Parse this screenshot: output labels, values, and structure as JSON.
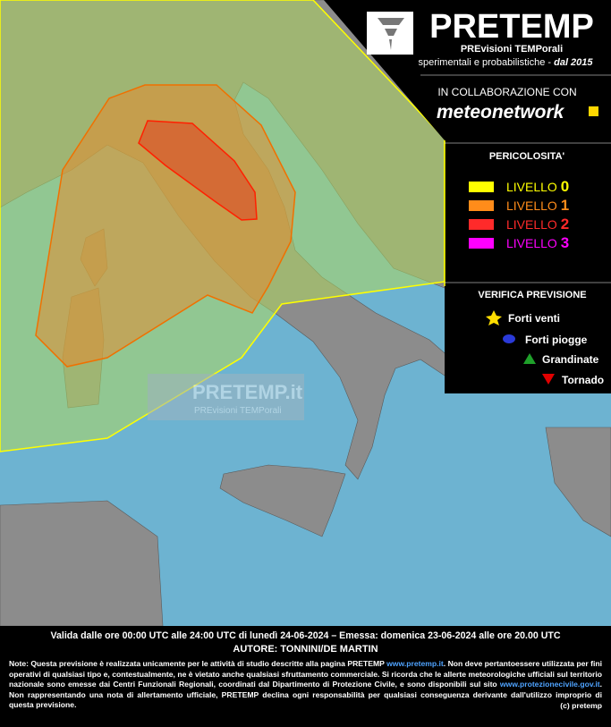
{
  "header": {
    "title": "PRETEMP",
    "subtitle": "PREvisioni TEMPorali",
    "tagline": "sperimentali e probabilistiche -",
    "since": "dal 2015",
    "collab": "IN COLLABORAZIONE CON",
    "partner": "meteonetwork"
  },
  "danger": {
    "title": "PERICOLOSITA'",
    "levels": [
      {
        "label": "LIVELLO",
        "level": "0",
        "color": "#ffff00"
      },
      {
        "label": "LIVELLO",
        "level": "1",
        "color": "#ff8c1a"
      },
      {
        "label": "LIVELLO",
        "level": "2",
        "color": "#ff2a2a"
      },
      {
        "label": "LIVELLO",
        "level": "3",
        "color": "#ff00ff"
      }
    ]
  },
  "verification": {
    "title": "VERIFICA PREVISIONE",
    "items": [
      "Forti venti",
      "Forti piogge",
      "Grandinate",
      "Tornado"
    ]
  },
  "watermark": {
    "title": "PRETEMP.it",
    "subtitle": "PREvisioni TEMPorali"
  },
  "footer": {
    "validity": "Valida dalle ore 00:00 UTC alle 24:00 UTC di lunedì 24-06-2024 – Emessa: domenica 23-06-2024 alle ore 20.00 UTC",
    "author": "AUTORE: TONNINI/DE MARTIN",
    "note": [
      "Note: Questa previsione è realizzata unicamente per le attività di studio descritte alla pagina PRETEMP ",
      "www.pretemp.it",
      ". Non deve pertantoessere utilizzata per fini operativi di qualsiasi tipo e, contestualmente, ne è vietato anche qualsiasi sfruttamento commerciale. Si ricorda che le allerte meteorologiche ufficiali sul territorio nazionale sono emesse dai Centri Funzionali Regionali, coordinati dal Dipartimento di Protezione Civile, e sono disponibili sul sito ",
      "www.protezionecivile.gov.it",
      ". Non rappresentando una nota di allertamento ufficiale, PRETEMP declina ogni responsabilità per qualsiasi conseguenza derivante dall'utilizzo improprio di questa previsione."
    ],
    "copyright": "(c) pretemp"
  }
}
